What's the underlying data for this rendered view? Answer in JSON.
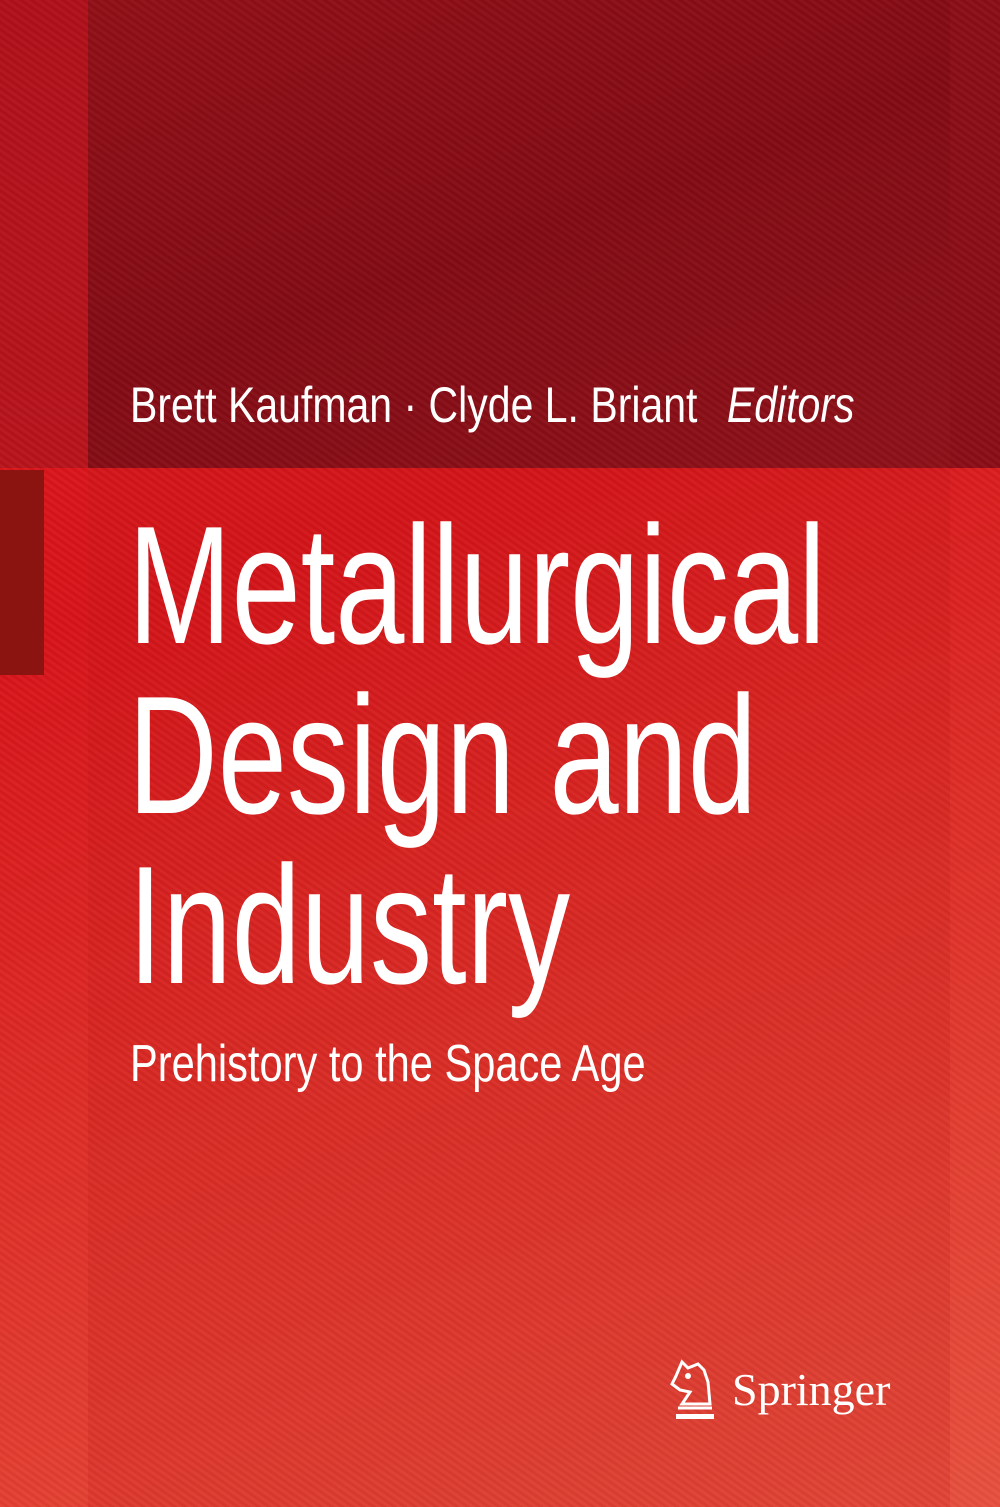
{
  "cover": {
    "editors": [
      "Brett Kaufman",
      "Clyde L. Briant"
    ],
    "separator": "·",
    "role": "Editors",
    "title_lines": [
      "Metallurgical",
      "Design and",
      "Industry"
    ],
    "subtitle": "Prehistory to the Space Age",
    "publisher": "Springer",
    "publisher_logo_icon": "knight-horse-icon",
    "colors": {
      "background": "#e01a1e",
      "top_panel": "#8e0e16",
      "accent_bar": "#8c1410",
      "text": "#ffffff"
    }
  }
}
